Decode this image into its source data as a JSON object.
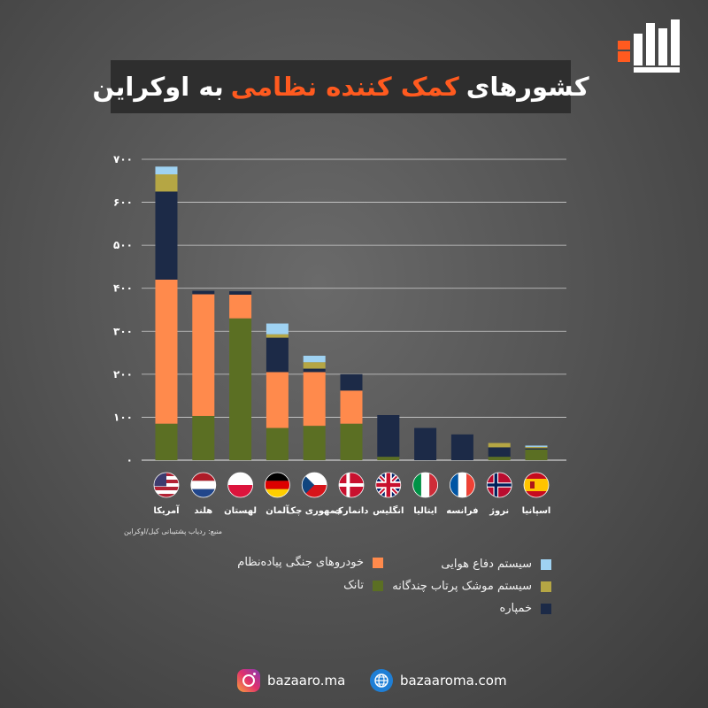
{
  "title": {
    "part1": "کشورهای",
    "highlight": "کمک کننده نظامی",
    "part2": "به اوکراین"
  },
  "source": "منبع: ردیاب پشتیبانی کیل/اوکراین",
  "colors": {
    "ifv": "#ff8a4c",
    "tank": "#5b6f23",
    "artillery": "#1c2a47",
    "mlrs": "#b5a644",
    "air_defense": "#9fd2f2",
    "accent": "#ff5a1f"
  },
  "chart_data": {
    "type": "bar",
    "stacked": true,
    "title": "کشورهای کمک کننده نظامی به اوکراین",
    "ylim": [
      0,
      700
    ],
    "yticks": [
      "۰",
      "۱۰۰",
      "۲۰۰",
      "۳۰۰",
      "۴۰۰",
      "۵۰۰",
      "۶۰۰",
      "۷۰۰"
    ],
    "grid": true,
    "legend_position": "bottom",
    "categories": [
      "آمریکا",
      "هلند",
      "لهستان",
      "آلمان",
      "جمهوری چک",
      "دانمارک",
      "انگلیس",
      "ایتالیا",
      "فرانسه",
      "نروژ",
      "اسپانیا"
    ],
    "flags": [
      "us-flag-icon",
      "netherlands-flag-icon",
      "poland-flag-icon",
      "germany-flag-icon",
      "czech-flag-icon",
      "denmark-flag-icon",
      "uk-flag-icon",
      "italy-flag-icon",
      "france-flag-icon",
      "norway-flag-icon",
      "spain-flag-icon"
    ],
    "series": [
      {
        "name": "تانک",
        "key": "tank",
        "values": [
          85,
          103,
          330,
          75,
          80,
          85,
          8,
          0,
          0,
          8,
          25
        ]
      },
      {
        "name": "خودروهای جنگی پیاده‌نظام",
        "key": "ifv",
        "values": [
          335,
          283,
          55,
          130,
          125,
          77,
          0,
          0,
          0,
          0,
          0
        ]
      },
      {
        "name": "خمپاره",
        "key": "artillery",
        "values": [
          205,
          8,
          8,
          80,
          8,
          38,
          97,
          75,
          60,
          22,
          3
        ]
      },
      {
        "name": "سیستم موشک پرتاب چندگانه",
        "key": "mlrs",
        "values": [
          40,
          0,
          0,
          8,
          15,
          0,
          0,
          0,
          0,
          10,
          3
        ]
      },
      {
        "name": "سیستم دفاع هوایی",
        "key": "air_defense",
        "values": [
          18,
          0,
          0,
          25,
          15,
          0,
          0,
          0,
          0,
          0,
          3
        ]
      }
    ]
  },
  "legend": [
    {
      "label": "خودروهای جنگی پیاده‌نظام",
      "key": "ifv"
    },
    {
      "label": "تانک",
      "key": "tank"
    },
    {
      "label": "سیستم دفاع هوایی",
      "key": "air_defense"
    },
    {
      "label": "سیستم موشک پرتاب چندگانه",
      "key": "mlrs"
    },
    {
      "label": "خمپاره",
      "key": "artillery"
    }
  ],
  "footer": {
    "instagram": "bazaaro.ma",
    "website": "bazaaroma.com"
  }
}
